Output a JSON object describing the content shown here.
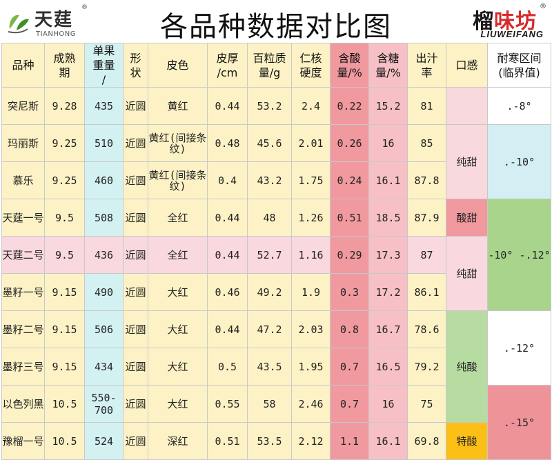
{
  "header": {
    "brand_left": "天莛",
    "brand_left_en": "TIANHONG",
    "reg_mark": "®",
    "title": "各品种数据对比图",
    "brand_right_a": "榴",
    "brand_right_b": "味坊",
    "brand_right_en": "LIUWEIFANG"
  },
  "columns": [
    "品种",
    "成熟期",
    "单果重量",
    "形状",
    "皮色",
    "皮厚/cm",
    "百粒质量/g",
    "仁核硬度",
    "含酸量/%",
    "含糖量/%",
    "出汁率",
    "口感",
    "耐寒区间（临界值）"
  ],
  "column_lines": [
    [
      "品种"
    ],
    [
      "成熟",
      "期"
    ],
    [
      "单果",
      "重量",
      "/"
    ],
    [
      "形",
      "状"
    ],
    [
      "皮色"
    ],
    [
      "皮厚",
      "/cm"
    ],
    [
      "百粒质",
      "量/g"
    ],
    [
      "仁核",
      "硬度"
    ],
    [
      "含酸",
      "量/%"
    ],
    [
      "含糖",
      "量/%"
    ],
    [
      "出汁",
      "率"
    ],
    [
      "口感"
    ],
    [
      "耐寒区间",
      "(临界值)"
    ]
  ],
  "rows": [
    {
      "name": "突尼斯",
      "maturity": "9.28",
      "weight": "435",
      "shape": "近圆",
      "color": "黄红",
      "thickness": "0.44",
      "grain": "53.2",
      "hardness": "2.4",
      "acid": "0.22",
      "sugar": "15.2",
      "juice": "81"
    },
    {
      "name": "玛丽斯",
      "maturity": "9.25",
      "weight": "510",
      "shape": "近圆",
      "color": "黄红(间接条纹)",
      "thickness": "0.48",
      "grain": "45.6",
      "hardness": "2.01",
      "acid": "0.26",
      "sugar": "16",
      "juice": "85"
    },
    {
      "name": "慕乐",
      "maturity": "9.25",
      "weight": "460",
      "shape": "近圆",
      "color": "黄红(间接条纹)",
      "thickness": "0.4",
      "grain": "43.2",
      "hardness": "1.75",
      "acid": "0.24",
      "sugar": "16.1",
      "juice": "87.8"
    },
    {
      "name": "天莛一号",
      "maturity": "9.5",
      "weight": "508",
      "shape": "近圆",
      "color": "全红",
      "thickness": "0.44",
      "grain": "48",
      "hardness": "1.26",
      "acid": "0.51",
      "sugar": "18.5",
      "juice": "87.9"
    },
    {
      "name": "天莛二号",
      "maturity": "9.5",
      "weight": "436",
      "shape": "近圆",
      "color": "全红",
      "thickness": "0.44",
      "grain": "52.7",
      "hardness": "1.16",
      "acid": "0.29",
      "sugar": "17.3",
      "juice": "87"
    },
    {
      "name": "墨籽一号",
      "maturity": "9.15",
      "weight": "490",
      "shape": "近圆",
      "color": "大红",
      "thickness": "0.46",
      "grain": "49.2",
      "hardness": "1.9",
      "acid": "0.3",
      "sugar": "17.2",
      "juice": "86.1"
    },
    {
      "name": "墨籽二号",
      "maturity": "9.15",
      "weight": "506",
      "shape": "近圆",
      "color": "大红",
      "thickness": "0.44",
      "grain": "47.2",
      "hardness": "2.03",
      "acid": "0.8",
      "sugar": "16.7",
      "juice": "78.6"
    },
    {
      "name": "墨籽三号",
      "maturity": "9.15",
      "weight": "434",
      "shape": "近圆",
      "color": "大红",
      "thickness": "0.5",
      "grain": "43.5",
      "hardness": "1.95",
      "acid": "0.7",
      "sugar": "16.5",
      "juice": "79.2"
    },
    {
      "name": "以色列黑",
      "maturity": "10.5",
      "weight": "550-700",
      "shape": "近圆",
      "color": "大红",
      "thickness": "0.55",
      "grain": "58",
      "hardness": "2.46",
      "acid": "0.7",
      "sugar": "16",
      "juice": "75"
    },
    {
      "name": "豫榴一号",
      "maturity": "10.5",
      "weight": "524",
      "shape": "近圆",
      "color": "深红",
      "thickness": "0.51",
      "grain": "53.5",
      "hardness": "2.12",
      "acid": "1.1",
      "sugar": "16.1",
      "juice": "69.8"
    }
  ],
  "taste_groups": [
    {
      "label": "纯甜",
      "row_start": 1,
      "rowspan": 1,
      "color": "#f8d9dd",
      "blank": true
    },
    {
      "label": "纯甜",
      "row_start": 2,
      "rowspan": 2,
      "color": "#f8d9dd"
    },
    {
      "label": "酸甜",
      "row_start": 4,
      "rowspan": 1,
      "color": "#f0999f"
    },
    {
      "label": "纯甜",
      "row_start": 5,
      "rowspan": 2,
      "color": "#f9d8df"
    },
    {
      "label": "纯酸",
      "row_start": 7,
      "rowspan": 3,
      "color": "#b7dca1"
    },
    {
      "label": "特酸",
      "row_start": 10,
      "rowspan": 1,
      "color": "#fbbf16"
    }
  ],
  "cold_groups": [
    {
      "label": ".-8°",
      "rowspan": 1,
      "color": "#ffffff"
    },
    {
      "label": ".-10°",
      "rowspan": 2,
      "color": "#d3eff3"
    },
    {
      "label": "-10° -.12°",
      "rowspan": 3,
      "color": "#a8d48c"
    },
    {
      "label": ".-12°",
      "rowspan": 2,
      "color": "#ffffff"
    },
    {
      "label": ".-15°",
      "rowspan": 2,
      "color": "#ee9499"
    }
  ]
}
